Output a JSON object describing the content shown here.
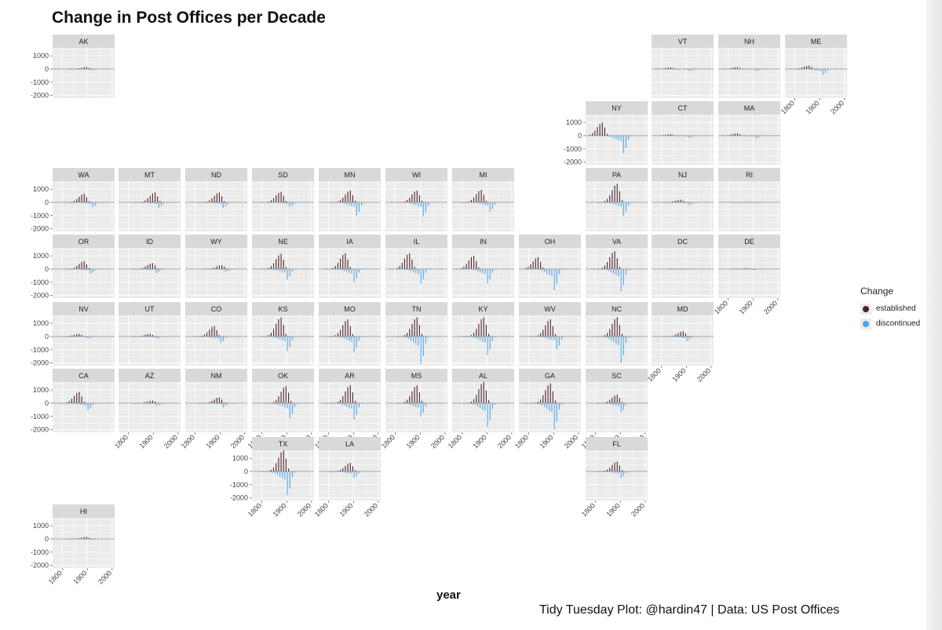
{
  "title": "Change in Post Offices per Decade",
  "caption": "Tidy Tuesday Plot: @hardin47 | Data: US Post Offices",
  "colors": {
    "established": "#4a1f25",
    "discontinued": "#4ea3e8",
    "panel": "#ebebeb",
    "strip": "#d9d9d9",
    "grid": "#ffffff"
  },
  "chart_data": {
    "type": "bar",
    "title": "Change in Post Offices per Decade",
    "xlabel": "year",
    "ylabel": "",
    "xlim": [
      1760,
      2010
    ],
    "ylim": [
      -2200,
      1600
    ],
    "x_ticks": [
      1800,
      1900,
      2000
    ],
    "y_ticks": [
      1000,
      0,
      -1000,
      -2000
    ],
    "legend": {
      "title": "Change",
      "position": "right",
      "entries": [
        "established",
        "discontinued"
      ]
    },
    "grid": true,
    "x": [
      1780,
      1790,
      1800,
      1810,
      1820,
      1830,
      1840,
      1850,
      1860,
      1870,
      1880,
      1890,
      1900,
      1910,
      1920,
      1930,
      1940,
      1950,
      1960,
      1970,
      1980,
      1990,
      2000
    ],
    "panels": [
      {
        "state": "AK",
        "peak_established": 150,
        "peak_year": 1900,
        "peak_discontinued": 100,
        "discontinued_year": 1910
      },
      {
        "state": "VT",
        "peak_established": 120,
        "peak_year": 1840,
        "peak_discontinued": 150,
        "discontinued_year": 1910
      },
      {
        "state": "NH",
        "peak_established": 140,
        "peak_year": 1840,
        "peak_discontinued": 150,
        "discontinued_year": 1910
      },
      {
        "state": "ME",
        "peak_established": 250,
        "peak_year": 1860,
        "peak_discontinued": 450,
        "discontinued_year": 1910
      },
      {
        "state": "NY",
        "peak_established": 1000,
        "peak_year": 1830,
        "peak_discontinued": 1300,
        "discontinued_year": 1910
      },
      {
        "state": "CT",
        "peak_established": 110,
        "peak_year": 1840,
        "peak_discontinued": 180,
        "discontinued_year": 1910
      },
      {
        "state": "MA",
        "peak_established": 180,
        "peak_year": 1840,
        "peak_discontinued": 200,
        "discontinued_year": 1910
      },
      {
        "state": "WA",
        "peak_established": 650,
        "peak_year": 1890,
        "peak_discontinued": 350,
        "discontinued_year": 1920
      },
      {
        "state": "MT",
        "peak_established": 750,
        "peak_year": 1910,
        "peak_discontinued": 400,
        "discontinued_year": 1920
      },
      {
        "state": "ND",
        "peak_established": 750,
        "peak_year": 1900,
        "peak_discontinued": 400,
        "discontinued_year": 1910
      },
      {
        "state": "SD",
        "peak_established": 800,
        "peak_year": 1880,
        "peak_discontinued": 350,
        "discontinued_year": 1910
      },
      {
        "state": "MN",
        "peak_established": 900,
        "peak_year": 1890,
        "peak_discontinued": 1000,
        "discontinued_year": 1910
      },
      {
        "state": "WI",
        "peak_established": 900,
        "peak_year": 1890,
        "peak_discontinued": 1050,
        "discontinued_year": 1910
      },
      {
        "state": "MI",
        "peak_established": 950,
        "peak_year": 1880,
        "peak_discontinued": 700,
        "discontinued_year": 1910
      },
      {
        "state": "PA",
        "peak_established": 1400,
        "peak_year": 1890,
        "peak_discontinued": 1000,
        "discontinued_year": 1910
      },
      {
        "state": "NJ",
        "peak_established": 200,
        "peak_year": 1880,
        "peak_discontinued": 200,
        "discontinued_year": 1910
      },
      {
        "state": "RI",
        "peak_established": 40,
        "peak_year": 1880,
        "peak_discontinued": 50,
        "discontinued_year": 1910
      },
      {
        "state": "OR",
        "peak_established": 600,
        "peak_year": 1890,
        "peak_discontinued": 350,
        "discontinued_year": 1910
      },
      {
        "state": "ID",
        "peak_established": 450,
        "peak_year": 1900,
        "peak_discontinued": 300,
        "discontinued_year": 1910
      },
      {
        "state": "WY",
        "peak_established": 300,
        "peak_year": 1910,
        "peak_discontinued": 200,
        "discontinued_year": 1920
      },
      {
        "state": "NE",
        "peak_established": 1150,
        "peak_year": 1880,
        "peak_discontinued": 800,
        "discontinued_year": 1900
      },
      {
        "state": "IA",
        "peak_established": 1200,
        "peak_year": 1870,
        "peak_discontinued": 1000,
        "discontinued_year": 1900
      },
      {
        "state": "IL",
        "peak_established": 1200,
        "peak_year": 1860,
        "peak_discontinued": 1100,
        "discontinued_year": 1900
      },
      {
        "state": "IN",
        "peak_established": 1000,
        "peak_year": 1850,
        "peak_discontinued": 1100,
        "discontinued_year": 1900
      },
      {
        "state": "OH",
        "peak_established": 900,
        "peak_year": 1840,
        "peak_discontinued": 1600,
        "discontinued_year": 1900
      },
      {
        "state": "VA",
        "peak_established": 1350,
        "peak_year": 1880,
        "peak_discontinued": 1700,
        "discontinued_year": 1900
      },
      {
        "state": "DC",
        "peak_established": 20,
        "peak_year": 1880,
        "peak_discontinued": 30,
        "discontinued_year": 1900
      },
      {
        "state": "DE",
        "peak_established": 60,
        "peak_year": 1880,
        "peak_discontinued": 60,
        "discontinued_year": 1900
      },
      {
        "state": "NV",
        "peak_established": 200,
        "peak_year": 1870,
        "peak_discontinued": 150,
        "discontinued_year": 1900
      },
      {
        "state": "UT",
        "peak_established": 200,
        "peak_year": 1890,
        "peak_discontinued": 150,
        "discontinued_year": 1910
      },
      {
        "state": "CO",
        "peak_established": 800,
        "peak_year": 1880,
        "peak_discontinued": 500,
        "discontinued_year": 1900
      },
      {
        "state": "KS",
        "peak_established": 1450,
        "peak_year": 1880,
        "peak_discontinued": 1100,
        "discontinued_year": 1900
      },
      {
        "state": "MO",
        "peak_established": 1300,
        "peak_year": 1880,
        "peak_discontinued": 1200,
        "discontinued_year": 1900
      },
      {
        "state": "TN",
        "peak_established": 1450,
        "peak_year": 1890,
        "peak_discontinued": 2100,
        "discontinued_year": 1900
      },
      {
        "state": "KY",
        "peak_established": 1450,
        "peak_year": 1890,
        "peak_discontinued": 1400,
        "discontinued_year": 1900
      },
      {
        "state": "WV",
        "peak_established": 1300,
        "peak_year": 1890,
        "peak_discontinued": 950,
        "discontinued_year": 1910
      },
      {
        "state": "NC",
        "peak_established": 1450,
        "peak_year": 1890,
        "peak_discontinued": 2000,
        "discontinued_year": 1900
      },
      {
        "state": "MD",
        "peak_established": 400,
        "peak_year": 1890,
        "peak_discontinued": 350,
        "discontinued_year": 1900
      },
      {
        "state": "CA",
        "peak_established": 850,
        "peak_year": 1870,
        "peak_discontinued": 550,
        "discontinued_year": 1900
      },
      {
        "state": "AZ",
        "peak_established": 200,
        "peak_year": 1900,
        "peak_discontinued": 200,
        "discontinued_year": 1910
      },
      {
        "state": "NM",
        "peak_established": 450,
        "peak_year": 1900,
        "peak_discontinued": 300,
        "discontinued_year": 1910
      },
      {
        "state": "OK",
        "peak_established": 1300,
        "peak_year": 1900,
        "peak_discontinued": 1150,
        "discontinued_year": 1910
      },
      {
        "state": "AR",
        "peak_established": 1350,
        "peak_year": 1890,
        "peak_discontinued": 1250,
        "discontinued_year": 1900
      },
      {
        "state": "MS",
        "peak_established": 1350,
        "peak_year": 1890,
        "peak_discontinued": 1000,
        "discontinued_year": 1900
      },
      {
        "state": "AL",
        "peak_established": 1600,
        "peak_year": 1890,
        "peak_discontinued": 1800,
        "discontinued_year": 1900
      },
      {
        "state": "GA",
        "peak_established": 1500,
        "peak_year": 1890,
        "peak_discontinued": 2000,
        "discontinued_year": 1900
      },
      {
        "state": "SC",
        "peak_established": 650,
        "peak_year": 1890,
        "peak_discontinued": 700,
        "discontinued_year": 1900
      },
      {
        "state": "TX",
        "peak_established": 1600,
        "peak_year": 1890,
        "peak_discontinued": 1800,
        "discontinued_year": 1900
      },
      {
        "state": "LA",
        "peak_established": 650,
        "peak_year": 1890,
        "peak_discontinued": 500,
        "discontinued_year": 1900
      },
      {
        "state": "FL",
        "peak_established": 750,
        "peak_year": 1890,
        "peak_discontinued": 500,
        "discontinued_year": 1900
      },
      {
        "state": "HI",
        "peak_established": 150,
        "peak_year": 1900,
        "peak_discontinued": 30,
        "discontinued_year": 1910
      }
    ]
  }
}
